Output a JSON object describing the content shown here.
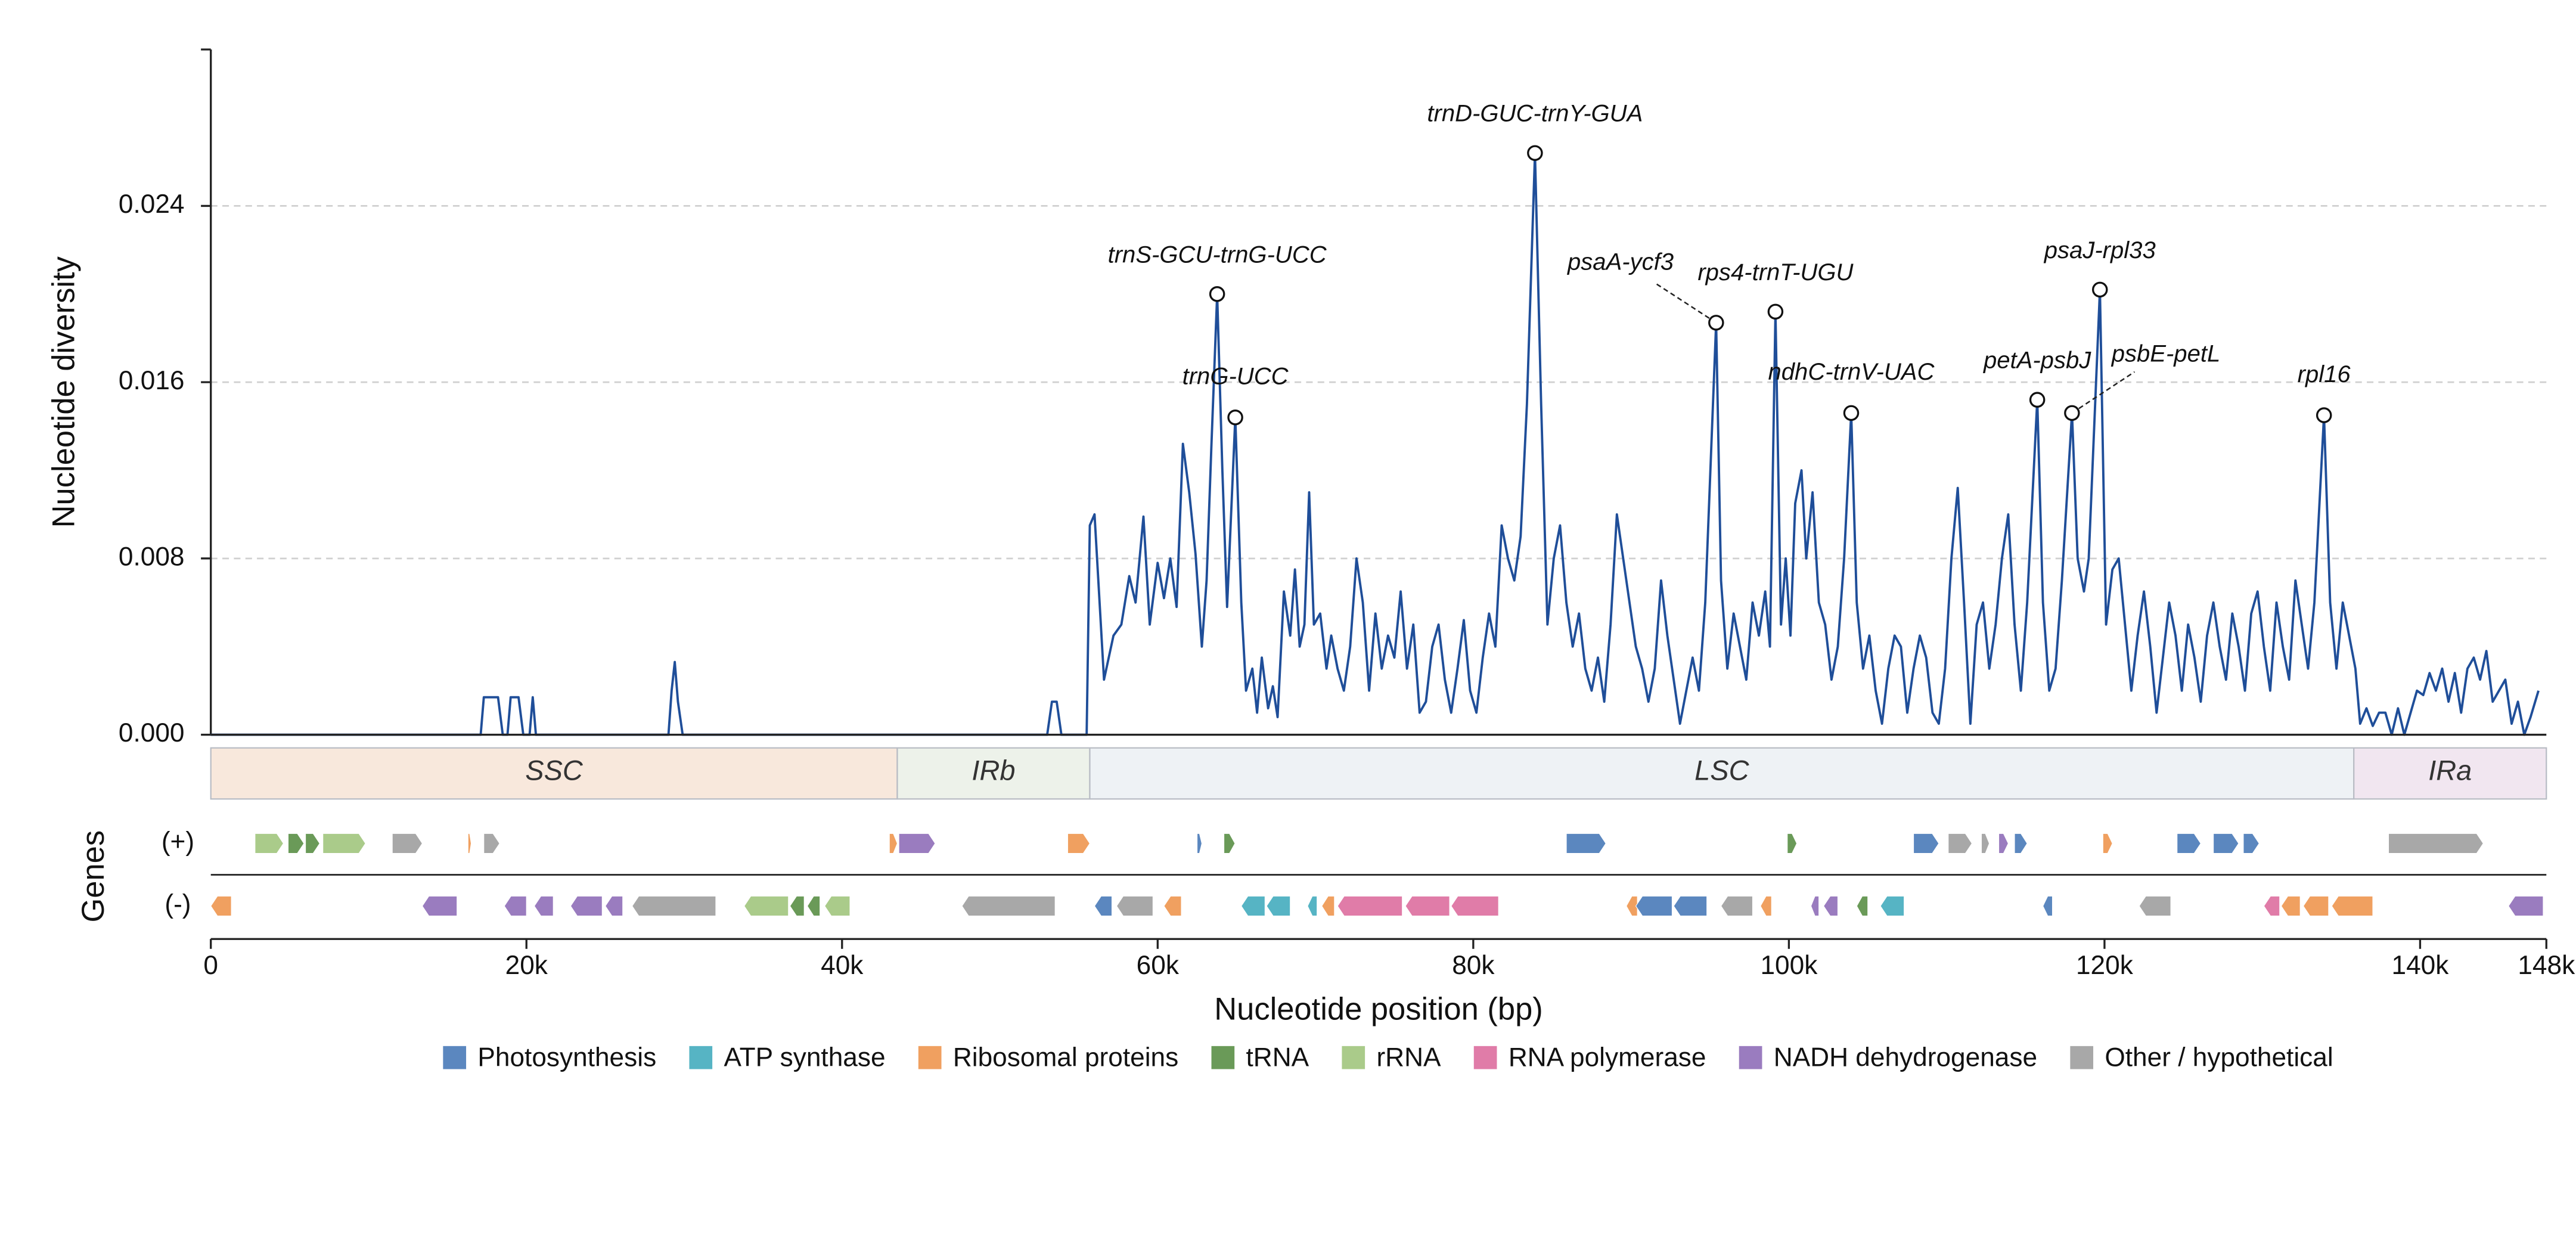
{
  "chart_data": {
    "type": "line",
    "ylabel": "Nucleotide diversity",
    "xlabel": "Nucleotide position (bp)",
    "color": "#1f4e99",
    "grid": true,
    "xlim": [
      0,
      148000
    ],
    "ylim": [
      0,
      0.0311
    ],
    "yticks": [
      {
        "value": 0,
        "label": "0.000"
      },
      0.008,
      0.016,
      0.024
    ],
    "xticks": [
      0,
      {
        "value": 20000,
        "label": "20k"
      },
      {
        "value": 40000,
        "label": "40k"
      },
      {
        "value": 60000,
        "label": "60k"
      },
      {
        "value": 80000,
        "label": "80k"
      },
      {
        "value": 100000,
        "label": "100k"
      },
      {
        "value": 120000,
        "label": "120k"
      },
      {
        "value": 140000,
        "label": "140k"
      },
      {
        "value": 148000,
        "label": "148k"
      }
    ],
    "x": [
      0,
      17100,
      17300,
      18200,
      18500,
      18800,
      19000,
      19500,
      19800,
      20200,
      20400,
      20600,
      29000,
      29200,
      29400,
      29600,
      29900,
      53000,
      53300,
      53600,
      53900,
      55500,
      55700,
      56000,
      56600,
      57200,
      57700,
      58200,
      58600,
      59100,
      59500,
      60000,
      60400,
      60800,
      61200,
      61600,
      62000,
      62400,
      62800,
      63100,
      63400,
      63770,
      64100,
      64400,
      64920,
      65300,
      65600,
      66000,
      66300,
      66600,
      67000,
      67300,
      67600,
      68000,
      68400,
      68700,
      69000,
      69300,
      69600,
      69900,
      70300,
      70700,
      71000,
      71400,
      71800,
      72200,
      72600,
      73000,
      73400,
      73800,
      74200,
      74600,
      75000,
      75400,
      75800,
      76200,
      76600,
      77000,
      77400,
      77800,
      78200,
      78600,
      79000,
      79400,
      79800,
      80200,
      80600,
      81000,
      81400,
      81800,
      82200,
      82600,
      83000,
      83400,
      83910,
      84300,
      84700,
      85100,
      85500,
      85900,
      86300,
      86700,
      87100,
      87500,
      87900,
      88300,
      88700,
      89100,
      89500,
      89900,
      90300,
      90700,
      91100,
      91500,
      91900,
      92300,
      92700,
      93100,
      93500,
      93900,
      94300,
      94700,
      95390,
      95700,
      96100,
      96500,
      96900,
      97300,
      97700,
      98100,
      98500,
      98800,
      99150,
      99500,
      99800,
      100100,
      100400,
      100800,
      101100,
      101500,
      101900,
      102300,
      102700,
      103100,
      103500,
      103950,
      104300,
      104700,
      105100,
      105500,
      105900,
      106300,
      106700,
      107100,
      107500,
      107900,
      108300,
      108700,
      109100,
      109500,
      109900,
      110300,
      110700,
      111100,
      111500,
      111900,
      112300,
      112700,
      113100,
      113500,
      113900,
      114300,
      114700,
      115100,
      115740,
      116100,
      116500,
      116900,
      117300,
      117940,
      118300,
      118700,
      119000,
      119710,
      120100,
      120500,
      120900,
      121300,
      121700,
      122100,
      122500,
      122900,
      123300,
      123700,
      124100,
      124500,
      124900,
      125300,
      125700,
      126100,
      126500,
      126900,
      127300,
      127700,
      128100,
      128500,
      128900,
      129300,
      129700,
      130100,
      130500,
      130900,
      131300,
      131700,
      132100,
      132500,
      132900,
      133300,
      133910,
      134300,
      134700,
      135100,
      135500,
      135900,
      136200,
      136600,
      137000,
      137400,
      137800,
      138200,
      138600,
      139000,
      139400,
      139800,
      140200,
      140600,
      141000,
      141400,
      141800,
      142200,
      142600,
      143000,
      143400,
      143800,
      144200,
      144600,
      145000,
      145400,
      145800,
      146200,
      146600,
      147000,
      147500
    ],
    "values": [
      0,
      0,
      0.0017,
      0.0017,
      0,
      0,
      0.0017,
      0.0017,
      0,
      0,
      0.0017,
      0,
      0,
      0.002,
      0.0033,
      0.0015,
      0,
      0,
      0.0015,
      0.0015,
      0,
      0,
      0.0095,
      0.01,
      0.0025,
      0.0045,
      0.005,
      0.0072,
      0.006,
      0.0099,
      0.005,
      0.0078,
      0.0062,
      0.008,
      0.0058,
      0.0132,
      0.011,
      0.0082,
      0.004,
      0.007,
      0.013,
      0.02,
      0.012,
      0.0058,
      0.0144,
      0.006,
      0.002,
      0.003,
      0.001,
      0.0035,
      0.0012,
      0.0022,
      0.0008,
      0.0065,
      0.0045,
      0.0075,
      0.004,
      0.005,
      0.011,
      0.005,
      0.0055,
      0.003,
      0.0045,
      0.003,
      0.002,
      0.004,
      0.008,
      0.006,
      0.002,
      0.0055,
      0.003,
      0.0045,
      0.0035,
      0.0065,
      0.003,
      0.005,
      0.001,
      0.0015,
      0.004,
      0.005,
      0.0025,
      0.001,
      0.003,
      0.0052,
      0.002,
      0.001,
      0.0035,
      0.0055,
      0.004,
      0.0095,
      0.008,
      0.007,
      0.009,
      0.015,
      0.0264,
      0.015,
      0.005,
      0.008,
      0.0095,
      0.006,
      0.004,
      0.0055,
      0.003,
      0.002,
      0.0035,
      0.0015,
      0.005,
      0.01,
      0.008,
      0.006,
      0.004,
      0.003,
      0.0015,
      0.003,
      0.007,
      0.0045,
      0.0025,
      0.0005,
      0.002,
      0.0035,
      0.002,
      0.006,
      0.0187,
      0.007,
      0.003,
      0.0055,
      0.004,
      0.0025,
      0.006,
      0.0045,
      0.0065,
      0.004,
      0.0192,
      0.005,
      0.008,
      0.0045,
      0.0105,
      0.012,
      0.008,
      0.011,
      0.006,
      0.005,
      0.0025,
      0.004,
      0.008,
      0.0146,
      0.006,
      0.003,
      0.0045,
      0.002,
      0.0005,
      0.003,
      0.0045,
      0.004,
      0.001,
      0.003,
      0.0045,
      0.0035,
      0.001,
      0.0005,
      0.003,
      0.008,
      0.0112,
      0.006,
      0.0005,
      0.005,
      0.006,
      0.003,
      0.005,
      0.008,
      0.01,
      0.005,
      0.002,
      0.006,
      0.0152,
      0.006,
      0.002,
      0.003,
      0.007,
      0.0146,
      0.008,
      0.0065,
      0.008,
      0.0202,
      0.005,
      0.0075,
      0.008,
      0.005,
      0.002,
      0.0045,
      0.0065,
      0.004,
      0.001,
      0.0035,
      0.006,
      0.0045,
      0.002,
      0.005,
      0.0035,
      0.0015,
      0.0045,
      0.006,
      0.004,
      0.0025,
      0.0055,
      0.004,
      0.002,
      0.0055,
      0.0065,
      0.004,
      0.002,
      0.006,
      0.004,
      0.0025,
      0.007,
      0.005,
      0.003,
      0.006,
      0.0145,
      0.006,
      0.003,
      0.006,
      0.0045,
      0.003,
      0.0005,
      0.0012,
      0.0004,
      0.001,
      0.001,
      0,
      0.0012,
      0,
      0.001,
      0.002,
      0.0018,
      0.0028,
      0.002,
      0.003,
      0.0015,
      0.0028,
      0.001,
      0.003,
      0.0035,
      0.0025,
      0.0038,
      0.0015,
      0.002,
      0.0025,
      0.0005,
      0.0015,
      0,
      0.0008,
      0.002
    ],
    "annotations": [
      {
        "text": "trnS-GCU-trnG-UCC",
        "x": 63770,
        "y": 0.02
      },
      {
        "text": "trnG-UCC",
        "x": 64920,
        "y": 0.0144
      },
      {
        "text": "trnD-GUC-trnY-GUA",
        "x": 83910,
        "y": 0.0264
      },
      {
        "text": "psaA-ycf3",
        "x": 95390,
        "y": 0.0187
      },
      {
        "text": "rps4-trnT-UGU",
        "x": 99150,
        "y": 0.0192
      },
      {
        "text": "ndhC-trnV-UAC",
        "x": 103950,
        "y": 0.0146
      },
      {
        "text": "petA-psbJ",
        "x": 115740,
        "y": 0.0152
      },
      {
        "text": "psbE-petL",
        "x": 117940,
        "y": 0.0146
      },
      {
        "text": "psaJ-rpl33",
        "x": 119710,
        "y": 0.0202
      },
      {
        "text": "rpl16",
        "x": 133910,
        "y": 0.0145
      }
    ],
    "regions": [
      {
        "name": "SSC",
        "start": 0,
        "end": 43500,
        "color": "#f8e8dc"
      },
      {
        "name": "IRb",
        "start": 43500,
        "end": 55700,
        "color": "#edf2ea"
      },
      {
        "name": "LSC",
        "start": 55700,
        "end": 135800,
        "color": "#eef2f5"
      },
      {
        "name": "IRa",
        "start": 135800,
        "end": 148000,
        "color": "#f1e6f0"
      }
    ],
    "gene_label": "Genes",
    "tracks": [
      "(+)",
      "(-)"
    ],
    "gene_categories": [
      {
        "name": "Photosynthesis",
        "color": "#5b87bf"
      },
      {
        "name": "ATP synthase",
        "color": "#56b4c4"
      },
      {
        "name": "Ribosomal proteins",
        "color": "#f0a060"
      },
      {
        "name": "tRNA",
        "color": "#6a9a58"
      },
      {
        "name": "rRNA",
        "color": "#aacb8a"
      },
      {
        "name": "RNA polymerase",
        "color": "#e07ca8"
      },
      {
        "name": "NADH dehydrogenase",
        "color": "#9a7cbf"
      },
      {
        "name": "Other / hypothetical",
        "color": "#a8a8a8"
      }
    ],
    "genes": [
      [
        2800,
        4600,
        0,
        4
      ],
      [
        4900,
        5900,
        0,
        3
      ],
      [
        6000,
        6900,
        0,
        3
      ],
      [
        7100,
        9800,
        0,
        4
      ],
      [
        11500,
        13400,
        0,
        7
      ],
      [
        16300,
        16500,
        0,
        2
      ],
      [
        17300,
        18300,
        0,
        7
      ],
      [
        43000,
        43500,
        0,
        2
      ],
      [
        43600,
        45900,
        0,
        6
      ],
      [
        54300,
        55700,
        0,
        2
      ],
      [
        62500,
        62800,
        0,
        0
      ],
      [
        64200,
        64900,
        0,
        3
      ],
      [
        85900,
        88400,
        0,
        0
      ],
      [
        99900,
        100500,
        0,
        3
      ],
      [
        107900,
        109500,
        0,
        0
      ],
      [
        110100,
        111600,
        0,
        7
      ],
      [
        112200,
        112700,
        0,
        7
      ],
      [
        113300,
        113900,
        0,
        6
      ],
      [
        114300,
        115100,
        0,
        0
      ],
      [
        119900,
        120500,
        0,
        2
      ],
      [
        124600,
        126100,
        0,
        0
      ],
      [
        126900,
        128500,
        0,
        0
      ],
      [
        128800,
        129800,
        0,
        0
      ],
      [
        138000,
        144000,
        0,
        7
      ],
      [
        0,
        1300,
        1,
        2
      ],
      [
        13400,
        15600,
        1,
        6
      ],
      [
        18600,
        20000,
        1,
        6
      ],
      [
        20500,
        21700,
        1,
        6
      ],
      [
        22800,
        24800,
        1,
        6
      ],
      [
        25000,
        26100,
        1,
        6
      ],
      [
        26700,
        32000,
        1,
        7
      ],
      [
        33800,
        36600,
        1,
        4
      ],
      [
        36700,
        37600,
        1,
        3
      ],
      [
        37800,
        38600,
        1,
        3
      ],
      [
        38900,
        40500,
        1,
        4
      ],
      [
        47600,
        53500,
        1,
        7
      ],
      [
        56000,
        57100,
        1,
        0
      ],
      [
        57400,
        59700,
        1,
        7
      ],
      [
        60400,
        61500,
        1,
        2
      ],
      [
        65300,
        66800,
        1,
        1
      ],
      [
        66900,
        68400,
        1,
        1
      ],
      [
        69500,
        70100,
        1,
        1
      ],
      [
        70400,
        71200,
        1,
        2
      ],
      [
        71400,
        75500,
        1,
        5
      ],
      [
        75700,
        78500,
        1,
        5
      ],
      [
        78600,
        81600,
        1,
        5
      ],
      [
        89700,
        90400,
        1,
        2
      ],
      [
        90300,
        92600,
        1,
        0
      ],
      [
        92700,
        94800,
        1,
        0
      ],
      [
        95700,
        97700,
        1,
        7
      ],
      [
        98200,
        98900,
        1,
        2
      ],
      [
        101400,
        101900,
        1,
        6
      ],
      [
        102200,
        103100,
        1,
        6
      ],
      [
        104300,
        105000,
        1,
        3
      ],
      [
        105800,
        107300,
        1,
        1
      ],
      [
        116100,
        116700,
        1,
        0
      ],
      [
        122200,
        124200,
        1,
        7
      ],
      [
        130100,
        131100,
        1,
        5
      ],
      [
        131200,
        132400,
        1,
        2
      ],
      [
        132600,
        134200,
        1,
        2
      ],
      [
        134400,
        137000,
        1,
        2
      ],
      [
        145600,
        147800,
        1,
        6
      ]
    ]
  }
}
